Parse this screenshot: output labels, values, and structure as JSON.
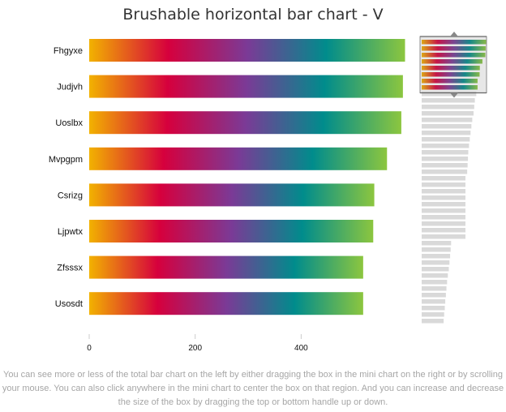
{
  "chart_data": {
    "type": "bar",
    "orientation": "horizontal",
    "title": "Brushable horizontal bar chart - V",
    "xlabel": "",
    "ylabel": "",
    "xlim": [
      0,
      600
    ],
    "x_ticks": [
      0,
      200,
      400
    ],
    "categories": [
      "Fhgyxe",
      "Judjvh",
      "Uoslbx",
      "Mvpgpm",
      "Csrizg",
      "Ljpwtx",
      "Zfsssx",
      "Usosdt"
    ],
    "values": [
      596,
      592,
      589,
      562,
      538,
      536,
      517,
      517
    ],
    "bar_gradient": [
      "#f2b200",
      "#d6003d",
      "#7b3a96",
      "#008c8c",
      "#8cc63f"
    ],
    "mini_chart": {
      "values": [
        596,
        592,
        589,
        562,
        538,
        536,
        517,
        517,
        505,
        492,
        486,
        480,
        468,
        460,
        452,
        445,
        438,
        431,
        428,
        425,
        421,
        405,
        405,
        405,
        405,
        405,
        405,
        405,
        405,
        405,
        405,
        272,
        268,
        263,
        257,
        251,
        242,
        235,
        229,
        224,
        218,
        214,
        208,
        203
      ],
      "brush_count": 8,
      "bar_color": "#d9d9d9"
    }
  },
  "caption": "You can see more or less of the total bar chart on the left by either dragging the box in the mini chart on the right or by scrolling your mouse. You can also click anywhere in the mini chart to center the box on that region. And you can increase and decrease the size of the box by dragging the top or bottom handle up or down."
}
